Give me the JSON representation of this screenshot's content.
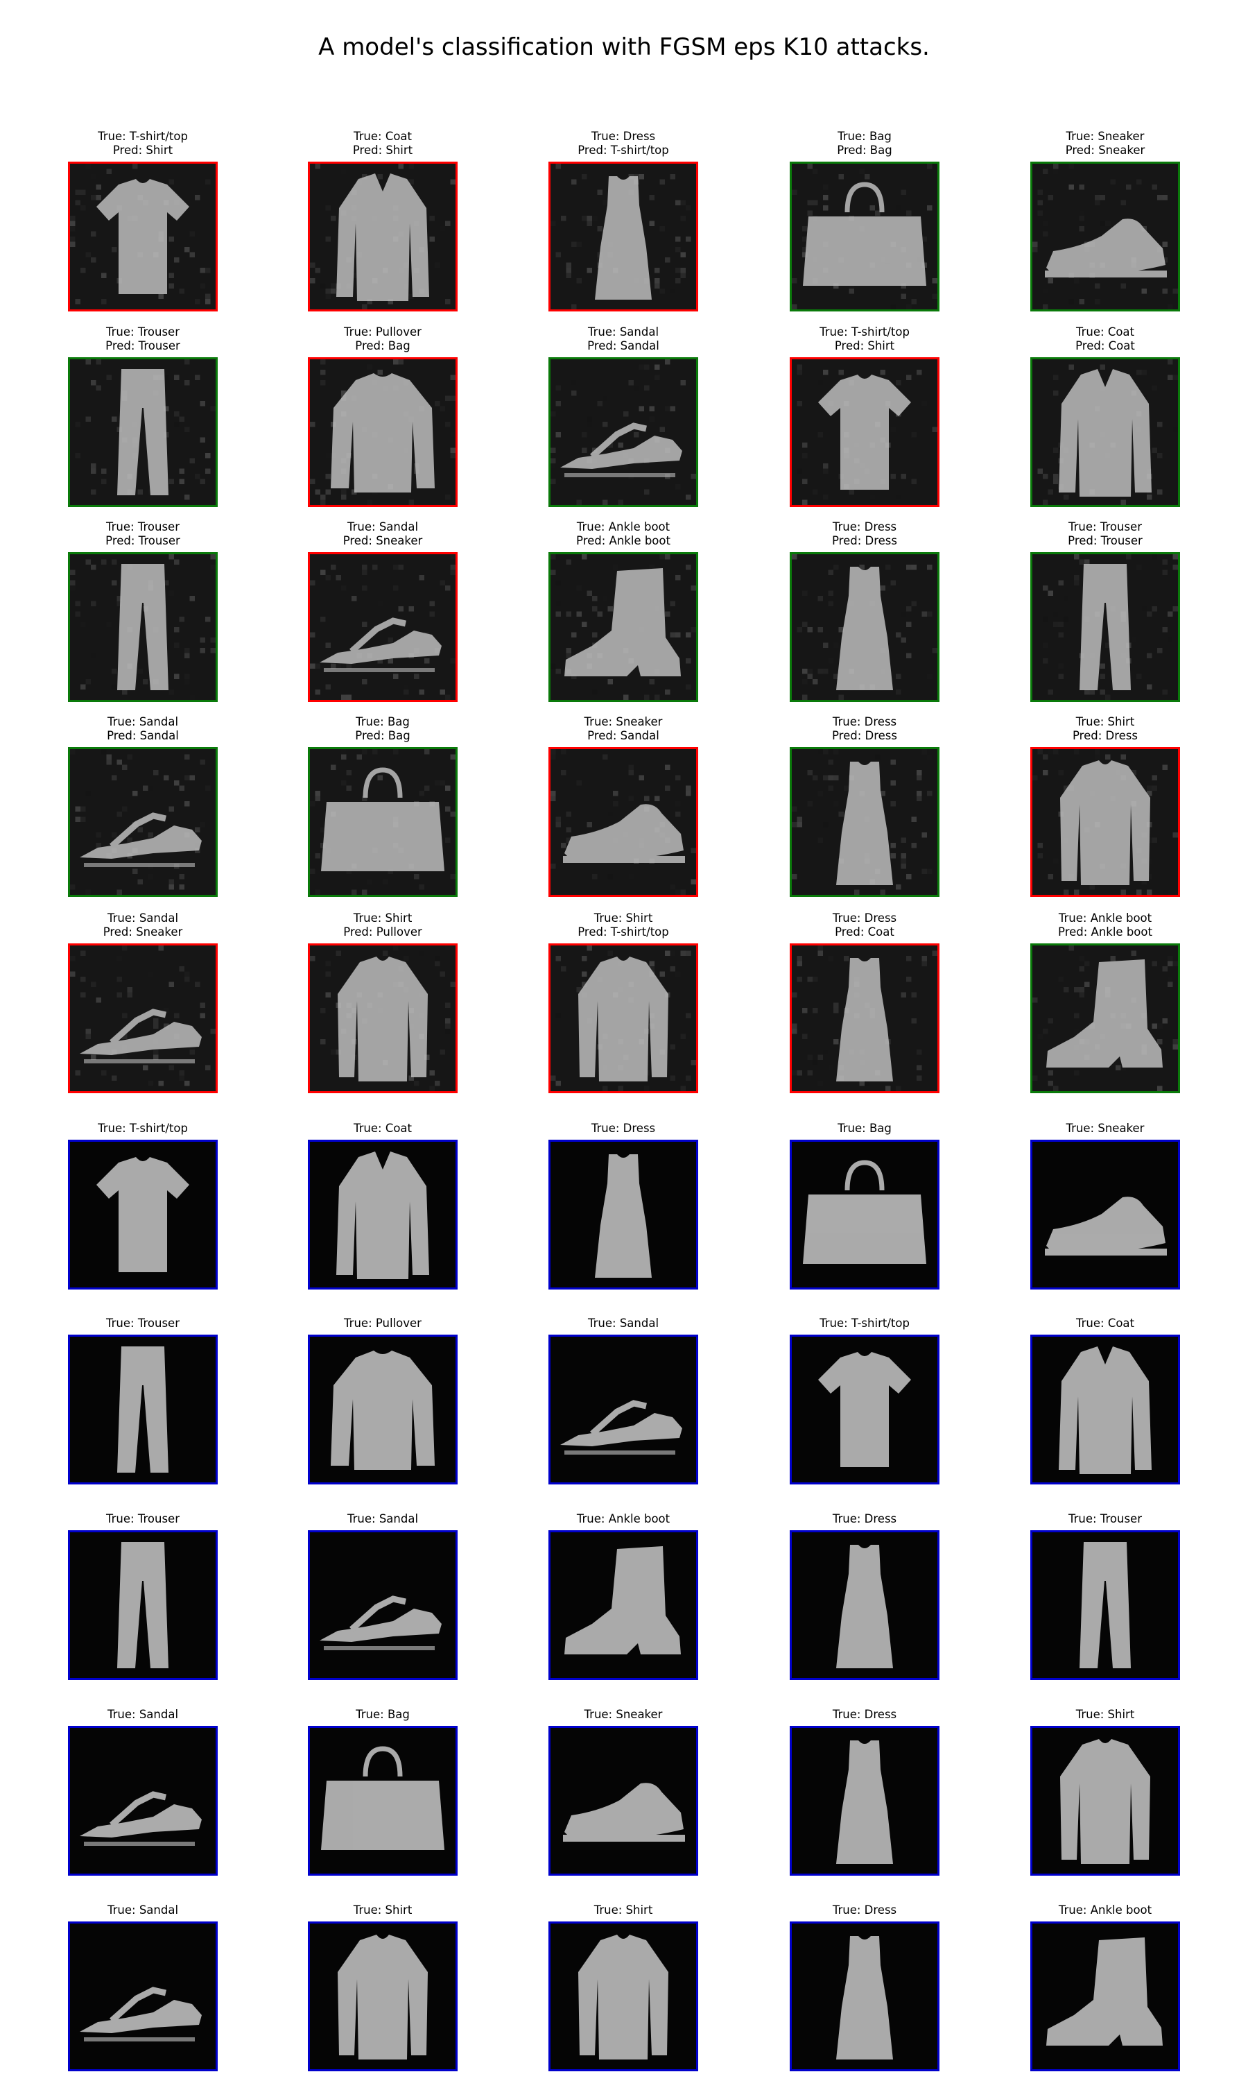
{
  "figure": {
    "title": "A model's classification with FGSM eps K10 attacks."
  },
  "colors": {
    "correct": "#0a7a0a",
    "incorrect": "#ff0000",
    "clean": "#0000cc",
    "background": "#ffffff"
  },
  "chart_data": {
    "type": "image_grid",
    "title": "A model's classification with FGSM eps K10 attacks.",
    "rows": 10,
    "cols": 5,
    "legend_semantics": {
      "green_border": "adversarial prediction matches true label",
      "red_border": "adversarial prediction differs from true label",
      "blue_border": "clean (unattacked) image"
    },
    "adversarial": [
      {
        "true": "T-shirt/top",
        "pred": "Shirt"
      },
      {
        "true": "Coat",
        "pred": "Shirt"
      },
      {
        "true": "Dress",
        "pred": "T-shirt/top"
      },
      {
        "true": "Bag",
        "pred": "Bag"
      },
      {
        "true": "Sneaker",
        "pred": "Sneaker"
      },
      {
        "true": "Trouser",
        "pred": "Trouser"
      },
      {
        "true": "Pullover",
        "pred": "Bag"
      },
      {
        "true": "Sandal",
        "pred": "Sandal"
      },
      {
        "true": "T-shirt/top",
        "pred": "Shirt"
      },
      {
        "true": "Coat",
        "pred": "Coat"
      },
      {
        "true": "Trouser",
        "pred": "Trouser"
      },
      {
        "true": "Sandal",
        "pred": "Sneaker"
      },
      {
        "true": "Ankle boot",
        "pred": "Ankle boot"
      },
      {
        "true": "Dress",
        "pred": "Dress"
      },
      {
        "true": "Trouser",
        "pred": "Trouser"
      },
      {
        "true": "Sandal",
        "pred": "Sandal"
      },
      {
        "true": "Bag",
        "pred": "Bag"
      },
      {
        "true": "Sneaker",
        "pred": "Sandal"
      },
      {
        "true": "Dress",
        "pred": "Dress"
      },
      {
        "true": "Shirt",
        "pred": "Dress"
      },
      {
        "true": "Sandal",
        "pred": "Sneaker"
      },
      {
        "true": "Shirt",
        "pred": "Pullover"
      },
      {
        "true": "Shirt",
        "pred": "T-shirt/top"
      },
      {
        "true": "Dress",
        "pred": "Coat"
      },
      {
        "true": "Ankle boot",
        "pred": "Ankle boot"
      }
    ],
    "clean": [
      {
        "true": "T-shirt/top"
      },
      {
        "true": "Coat"
      },
      {
        "true": "Dress"
      },
      {
        "true": "Bag"
      },
      {
        "true": "Sneaker"
      },
      {
        "true": "Trouser"
      },
      {
        "true": "Pullover"
      },
      {
        "true": "Sandal"
      },
      {
        "true": "T-shirt/top"
      },
      {
        "true": "Coat"
      },
      {
        "true": "Trouser"
      },
      {
        "true": "Sandal"
      },
      {
        "true": "Ankle boot"
      },
      {
        "true": "Dress"
      },
      {
        "true": "Trouser"
      },
      {
        "true": "Sandal"
      },
      {
        "true": "Bag"
      },
      {
        "true": "Sneaker"
      },
      {
        "true": "Dress"
      },
      {
        "true": "Shirt"
      },
      {
        "true": "Sandal"
      },
      {
        "true": "Shirt"
      },
      {
        "true": "Shirt"
      },
      {
        "true": "Dress"
      },
      {
        "true": "Ankle boot"
      }
    ]
  }
}
